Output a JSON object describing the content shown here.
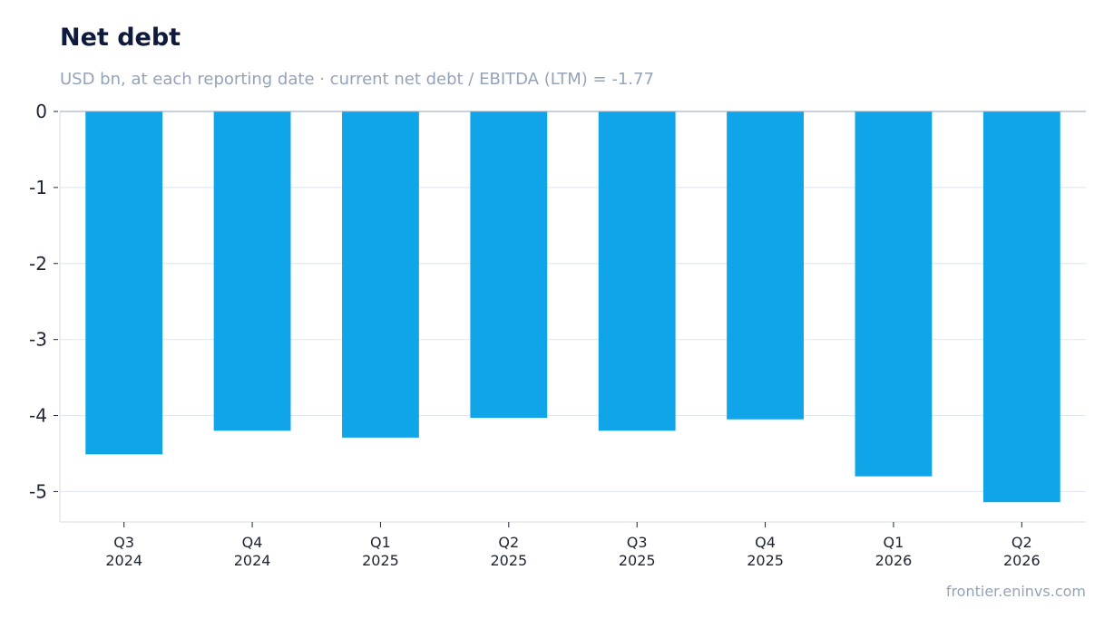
{
  "header": {
    "title": "Net debt",
    "subtitle": "USD bn, at each reporting date · current net debt / EBITDA (LTM) = -1.77"
  },
  "footer": {
    "source": "frontier.eninvs.com"
  },
  "colors": {
    "bar": "#10a5e8",
    "title": "#0f1b3d",
    "muted": "#94a3b8",
    "grid": "#e2e8f0",
    "zero_line": "#94a3b8"
  },
  "chart_data": {
    "type": "bar",
    "title": "Net debt",
    "subtitle": "USD bn, at each reporting date · current net debt / EBITDA (LTM) = -1.77",
    "categories": [
      [
        "Q3",
        "2024"
      ],
      [
        "Q4",
        "2024"
      ],
      [
        "Q1",
        "2025"
      ],
      [
        "Q2",
        "2025"
      ],
      [
        "Q3",
        "2025"
      ],
      [
        "Q4",
        "2025"
      ],
      [
        "Q1",
        "2026"
      ],
      [
        "Q2",
        "2026"
      ]
    ],
    "values": [
      -4.51,
      -4.2,
      -4.29,
      -4.03,
      -4.2,
      -4.05,
      -4.8,
      -5.14
    ],
    "ylim": [
      -5.4,
      0
    ],
    "yticks": [
      "0",
      "-1",
      "-2",
      "-3",
      "-4",
      "-5"
    ],
    "grid": true,
    "legend": false
  }
}
